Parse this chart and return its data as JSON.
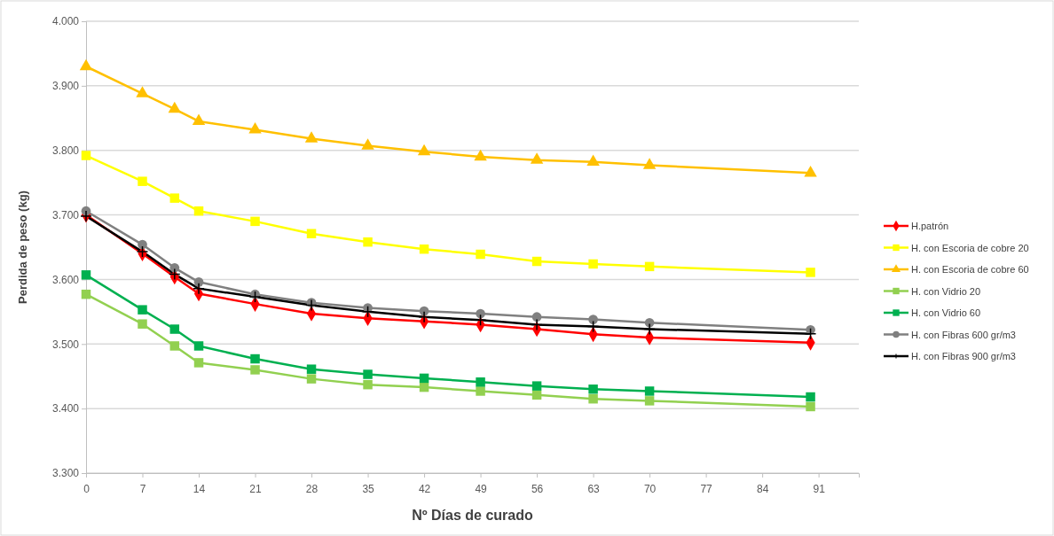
{
  "chart_data": {
    "type": "line",
    "xlabel": "Nº Días de curado",
    "ylabel": "Perdida de peso (kg)",
    "x": [
      0,
      7,
      11,
      14,
      21,
      28,
      35,
      42,
      49,
      56,
      63,
      70,
      90
    ],
    "xlim": [
      0,
      96
    ],
    "xticks": [
      0,
      7,
      14,
      21,
      28,
      35,
      42,
      49,
      56,
      63,
      70,
      77,
      84,
      91
    ],
    "ylim": [
      3.3,
      4.0
    ],
    "yticks": [
      {
        "value": 3.3,
        "label": "3.300"
      },
      {
        "value": 3.4,
        "label": "3.400"
      },
      {
        "value": 3.5,
        "label": "3.500"
      },
      {
        "value": 3.6,
        "label": "3.600"
      },
      {
        "value": 3.7,
        "label": "3.700"
      },
      {
        "value": 3.8,
        "label": "3.800"
      },
      {
        "value": 3.9,
        "label": "3.900"
      },
      {
        "value": 4.0,
        "label": "4.000"
      }
    ],
    "grid": "y",
    "legend": "right",
    "line_style": "solid",
    "series": [
      {
        "name": "H.patrón",
        "color": "#ff0000",
        "marker": "diamond",
        "values": [
          3.7,
          3.64,
          3.604,
          3.578,
          3.562,
          3.547,
          3.54,
          3.535,
          3.53,
          3.523,
          3.515,
          3.51,
          3.502
        ]
      },
      {
        "name": "H. con Escoria de cobre 20",
        "color": "#ffff00",
        "marker": "square",
        "values": [
          3.792,
          3.752,
          3.726,
          3.706,
          3.69,
          3.671,
          3.658,
          3.647,
          3.639,
          3.628,
          3.624,
          3.62,
          3.611
        ]
      },
      {
        "name": "H. con Escoria de cobre 60",
        "color": "#ffc000",
        "marker": "triangle",
        "values": [
          3.93,
          3.888,
          3.864,
          3.845,
          3.832,
          3.818,
          3.807,
          3.798,
          3.79,
          3.785,
          3.782,
          3.777,
          3.765
        ]
      },
      {
        "name": "H. con Vidrio 20",
        "color": "#92d050",
        "marker": "square",
        "values": [
          3.577,
          3.531,
          3.497,
          3.471,
          3.46,
          3.446,
          3.437,
          3.433,
          3.427,
          3.421,
          3.415,
          3.412,
          3.403
        ]
      },
      {
        "name": "H. con Vidrio 60",
        "color": "#00b050",
        "marker": "square",
        "values": [
          3.607,
          3.553,
          3.523,
          3.497,
          3.477,
          3.461,
          3.453,
          3.447,
          3.441,
          3.435,
          3.43,
          3.427,
          3.418
        ]
      },
      {
        "name": "H. con Fibras 600 gr/m3",
        "color": "#808080",
        "marker": "circle",
        "values": [
          3.706,
          3.654,
          3.618,
          3.596,
          3.577,
          3.564,
          3.556,
          3.551,
          3.547,
          3.542,
          3.538,
          3.533,
          3.522
        ]
      },
      {
        "name": "H. con Fibras 900 gr/m3",
        "color": "#000000",
        "marker": "cross",
        "values": [
          3.698,
          3.643,
          3.608,
          3.586,
          3.573,
          3.56,
          3.55,
          3.542,
          3.537,
          3.53,
          3.527,
          3.523,
          3.516
        ]
      }
    ]
  }
}
